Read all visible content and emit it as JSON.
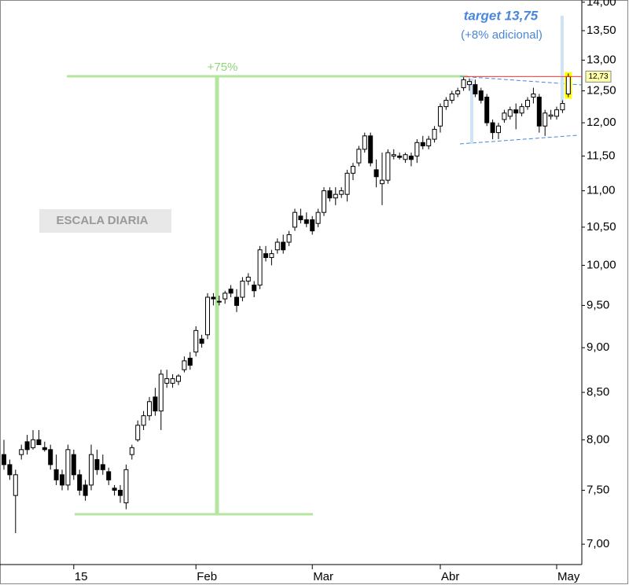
{
  "chart_data": {
    "type": "candlestick",
    "annotations": {
      "gain": "+75%",
      "scale": "ESCALA DIARIA",
      "target": "target 13,75",
      "target_note": "(+8% adicional)",
      "price_tag": "12,73"
    },
    "categories": [
      null,
      null,
      null,
      null,
      null,
      null,
      null,
      null,
      null,
      null,
      null,
      null,
      "15",
      null,
      null,
      null,
      null,
      null,
      null,
      null,
      null,
      null,
      null,
      null,
      null,
      null,
      null,
      null,
      null,
      null,
      null,
      null,
      null,
      "Feb",
      null,
      null,
      null,
      null,
      null,
      null,
      null,
      null,
      null,
      null,
      null,
      null,
      null,
      null,
      null,
      null,
      null,
      null,
      null,
      "Mar",
      null,
      null,
      null,
      null,
      null,
      null,
      null,
      null,
      null,
      null,
      null,
      null,
      null,
      null,
      null,
      null,
      null,
      null,
      null,
      null,
      null,
      "Abr",
      null,
      null,
      null,
      null,
      null,
      null,
      null,
      null,
      null,
      null,
      null,
      null,
      null,
      null,
      null,
      null,
      null,
      null,
      null,
      "May",
      null,
      null
    ],
    "ohlc": [
      [
        7.85,
        8.0,
        7.7,
        7.75
      ],
      [
        7.75,
        7.8,
        7.6,
        7.65
      ],
      [
        7.45,
        7.7,
        7.1,
        7.65
      ],
      [
        7.85,
        7.95,
        7.8,
        7.9
      ],
      [
        7.98,
        8.05,
        7.85,
        7.9
      ],
      [
        7.92,
        8.1,
        7.9,
        8.0
      ],
      [
        8.0,
        8.1,
        7.95,
        7.95
      ],
      [
        7.92,
        7.98,
        7.88,
        7.9
      ],
      [
        7.9,
        7.95,
        7.7,
        7.75
      ],
      [
        7.7,
        7.85,
        7.55,
        7.6
      ],
      [
        7.65,
        7.7,
        7.5,
        7.55
      ],
      [
        7.55,
        7.95,
        7.5,
        7.9
      ],
      [
        7.85,
        7.9,
        7.6,
        7.65
      ],
      [
        7.65,
        7.7,
        7.45,
        7.5
      ],
      [
        7.55,
        7.6,
        7.4,
        7.45
      ],
      [
        7.55,
        7.95,
        7.5,
        7.85
      ],
      [
        7.8,
        7.9,
        7.65,
        7.7
      ],
      [
        7.75,
        7.85,
        7.65,
        7.7
      ],
      [
        7.68,
        7.72,
        7.55,
        7.6
      ],
      [
        7.52,
        7.55,
        7.45,
        7.5
      ],
      [
        7.5,
        7.55,
        7.38,
        7.45
      ],
      [
        7.38,
        7.75,
        7.32,
        7.7
      ],
      [
        7.85,
        7.95,
        7.8,
        7.92
      ],
      [
        8.0,
        8.2,
        7.98,
        8.15
      ],
      [
        8.15,
        8.3,
        8.1,
        8.25
      ],
      [
        8.25,
        8.45,
        8.2,
        8.4
      ],
      [
        8.45,
        8.55,
        8.25,
        8.3
      ],
      [
        8.3,
        8.75,
        8.1,
        8.7
      ],
      [
        8.6,
        8.75,
        8.55,
        8.65
      ],
      [
        8.6,
        8.7,
        8.55,
        8.65
      ],
      [
        8.62,
        8.7,
        8.58,
        8.68
      ],
      [
        8.75,
        8.9,
        8.72,
        8.85
      ],
      [
        8.88,
        8.95,
        8.75,
        8.8
      ],
      [
        8.95,
        9.25,
        8.9,
        9.2
      ],
      [
        9.1,
        9.15,
        9.0,
        9.05
      ],
      [
        9.15,
        9.65,
        9.1,
        9.6
      ],
      [
        9.6,
        9.65,
        9.5,
        9.58
      ],
      [
        9.55,
        9.62,
        9.5,
        9.55
      ],
      [
        9.58,
        9.68,
        9.52,
        9.65
      ],
      [
        9.7,
        9.75,
        9.6,
        9.65
      ],
      [
        9.6,
        9.7,
        9.42,
        9.5
      ],
      [
        9.6,
        9.85,
        9.55,
        9.8
      ],
      [
        9.8,
        9.9,
        9.75,
        9.85
      ],
      [
        9.75,
        9.8,
        9.6,
        9.68
      ],
      [
        9.75,
        10.25,
        9.7,
        10.2
      ],
      [
        10.15,
        10.25,
        10.05,
        10.1
      ],
      [
        10.1,
        10.2,
        10.0,
        10.15
      ],
      [
        10.2,
        10.35,
        10.15,
        10.3
      ],
      [
        10.3,
        10.4,
        10.15,
        10.2
      ],
      [
        10.3,
        10.45,
        10.25,
        10.4
      ],
      [
        10.5,
        10.75,
        10.45,
        10.7
      ],
      [
        10.65,
        10.75,
        10.55,
        10.6
      ],
      [
        10.6,
        10.7,
        10.5,
        10.55
      ],
      [
        10.6,
        10.65,
        10.4,
        10.45
      ],
      [
        10.55,
        10.75,
        10.5,
        10.7
      ],
      [
        10.7,
        11.05,
        10.65,
        11.0
      ],
      [
        11.0,
        11.05,
        10.85,
        10.9
      ],
      [
        10.9,
        11.05,
        10.8,
        10.95
      ],
      [
        10.95,
        11.05,
        10.9,
        11.0
      ],
      [
        10.95,
        11.3,
        10.85,
        11.25
      ],
      [
        11.25,
        11.4,
        11.15,
        11.35
      ],
      [
        11.4,
        11.65,
        11.35,
        11.6
      ],
      [
        11.6,
        11.85,
        11.55,
        11.8
      ],
      [
        11.8,
        11.85,
        11.35,
        11.4
      ],
      [
        11.3,
        11.45,
        11.05,
        11.2
      ],
      [
        11.1,
        11.55,
        10.8,
        11.15
      ],
      [
        11.15,
        11.6,
        11.1,
        11.55
      ],
      [
        11.5,
        11.6,
        11.45,
        11.52
      ],
      [
        11.5,
        11.55,
        11.45,
        11.48
      ],
      [
        11.45,
        11.55,
        11.4,
        11.52
      ],
      [
        11.5,
        11.55,
        11.35,
        11.45
      ],
      [
        11.5,
        11.75,
        11.4,
        11.7
      ],
      [
        11.7,
        11.8,
        11.6,
        11.65
      ],
      [
        11.65,
        11.8,
        11.6,
        11.75
      ],
      [
        11.75,
        11.95,
        11.7,
        11.9
      ],
      [
        11.95,
        12.3,
        11.85,
        12.25
      ],
      [
        12.25,
        12.4,
        12.2,
        12.35
      ],
      [
        12.35,
        12.5,
        12.3,
        12.45
      ],
      [
        12.45,
        12.55,
        12.4,
        12.5
      ],
      [
        12.55,
        12.72,
        12.5,
        12.68
      ],
      [
        12.6,
        12.7,
        12.5,
        12.65
      ],
      [
        12.6,
        12.68,
        12.4,
        12.45
      ],
      [
        12.5,
        12.55,
        12.3,
        12.35
      ],
      [
        12.4,
        12.45,
        11.95,
        12.0
      ],
      [
        12.0,
        12.05,
        11.75,
        11.85
      ],
      [
        11.85,
        12.0,
        11.75,
        11.95
      ],
      [
        12.05,
        12.2,
        12.0,
        12.15
      ],
      [
        12.1,
        12.25,
        12.05,
        12.2
      ],
      [
        12.2,
        12.3,
        11.9,
        12.15
      ],
      [
        12.15,
        12.3,
        12.1,
        12.25
      ],
      [
        12.25,
        12.4,
        12.2,
        12.35
      ],
      [
        12.4,
        12.55,
        12.3,
        12.45
      ],
      [
        12.4,
        12.45,
        11.85,
        11.95
      ],
      [
        11.95,
        12.2,
        11.8,
        12.15
      ],
      [
        12.1,
        12.2,
        12.05,
        12.12
      ],
      [
        12.1,
        12.25,
        12.05,
        12.2
      ],
      [
        12.2,
        12.35,
        12.15,
        12.3
      ],
      [
        12.45,
        12.78,
        12.4,
        12.73
      ]
    ],
    "log_scale": true,
    "ylim": [
      6.82,
      14.04
    ],
    "yticks": [
      {
        "value": 7,
        "label": "7,00"
      },
      {
        "value": 7.5,
        "label": "7,50"
      },
      {
        "value": 8,
        "label": "8,00"
      },
      {
        "value": 8.5,
        "label": "8,50"
      },
      {
        "value": 9,
        "label": "9,00"
      },
      {
        "value": 9.5,
        "label": "9,50"
      },
      {
        "value": 10,
        "label": "10,00"
      },
      {
        "value": 10.5,
        "label": "10,50"
      },
      {
        "value": 11,
        "label": "11,00"
      },
      {
        "value": 11.5,
        "label": "11,50"
      },
      {
        "value": 12,
        "label": "12,00"
      },
      {
        "value": 12.5,
        "label": "12,50"
      },
      {
        "value": 13,
        "label": "13,00"
      },
      {
        "value": 13.5,
        "label": "13,50"
      },
      {
        "value": 14,
        "label": "14,00"
      }
    ],
    "up_color": "#ffffff",
    "down_color": "#000000",
    "highlight_color": "#ffff00",
    "last_line_color": "#ff3333"
  }
}
